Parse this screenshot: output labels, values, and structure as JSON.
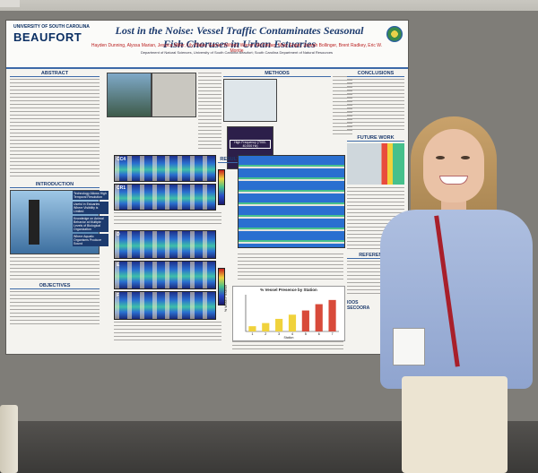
{
  "poster": {
    "university_line": "UNIVERSITY OF SOUTH CAROLINA",
    "university_name": "BEAUFORT",
    "title": "Lost in the Noise: Vessel Traffic Contaminates Seasonal Fish Choruses in Urban Estuaries",
    "authors": "Hayden Dunning, Alyssa Marian, Jessica Miller, Lily Blake, Garren Wilford, Warren McClellan, Mary Engel, Joseph Bollinger, Brent Radkey, Eric W. Montie",
    "affiliation": "Department of Natural Sciences, University of South Carolina Beaufort; South Carolina Department of Natural Resources",
    "sections": {
      "abstract": "ABSTRACT",
      "introduction": "INTRODUCTION",
      "objectives": "OBJECTIVES",
      "methods": "METHODS",
      "results": "RESULTS",
      "conclusions": "CONCLUSIONS",
      "future_work": "FUTURE WORK",
      "references": "REFERENCES"
    },
    "callouts": [
      "Technology Allows High Temporal Resolution",
      "Useful in Estuaries Where Visibility is Limited",
      "Knowledge on Animal Behavior at Multiple Levels of Biological Organization",
      "Where Aquatic Organisms Produce Sound"
    ],
    "spectrogram_labels": [
      "CC4",
      "CR1",
      "D",
      "E",
      "F"
    ],
    "inset_label": "High Frequency (7000-40,000 Hz)",
    "logos": [
      "IOOS",
      "SECOORA"
    ]
  },
  "chart_data": {
    "type": "bar",
    "title": "% Vessel Presence by Station",
    "xlabel": "Station",
    "ylabel": "% Vessel Presence",
    "categories": [
      "1",
      "2",
      "3",
      "4",
      "5",
      "6",
      "7"
    ],
    "values": [
      5,
      8,
      12,
      16,
      20,
      26,
      30
    ],
    "colors": [
      "#f0d23c",
      "#f0d23c",
      "#f0d23c",
      "#f0d23c",
      "#d84a3a",
      "#d84a3a",
      "#d84a3a"
    ],
    "ylim": [
      0,
      35
    ]
  }
}
